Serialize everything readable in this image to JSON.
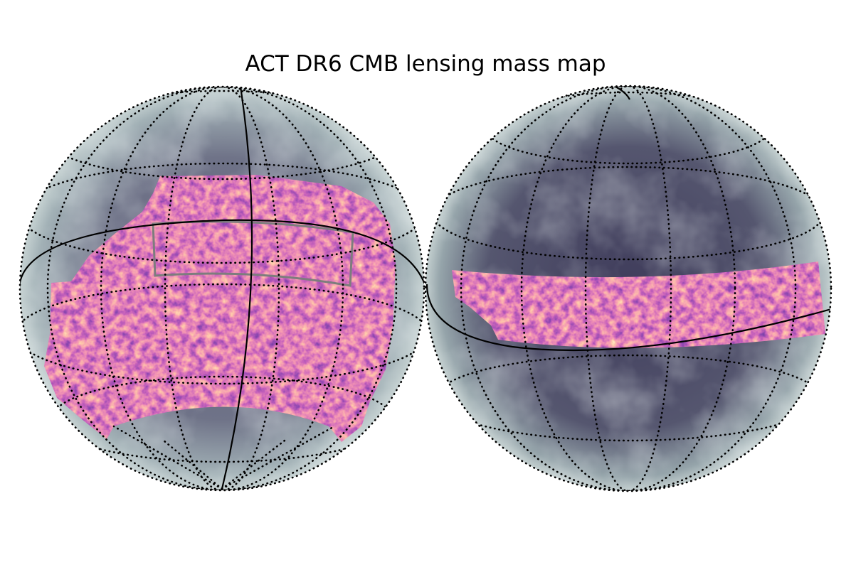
{
  "header": {
    "title": "ACT DR6 CMB lensing mass map"
  }
}
